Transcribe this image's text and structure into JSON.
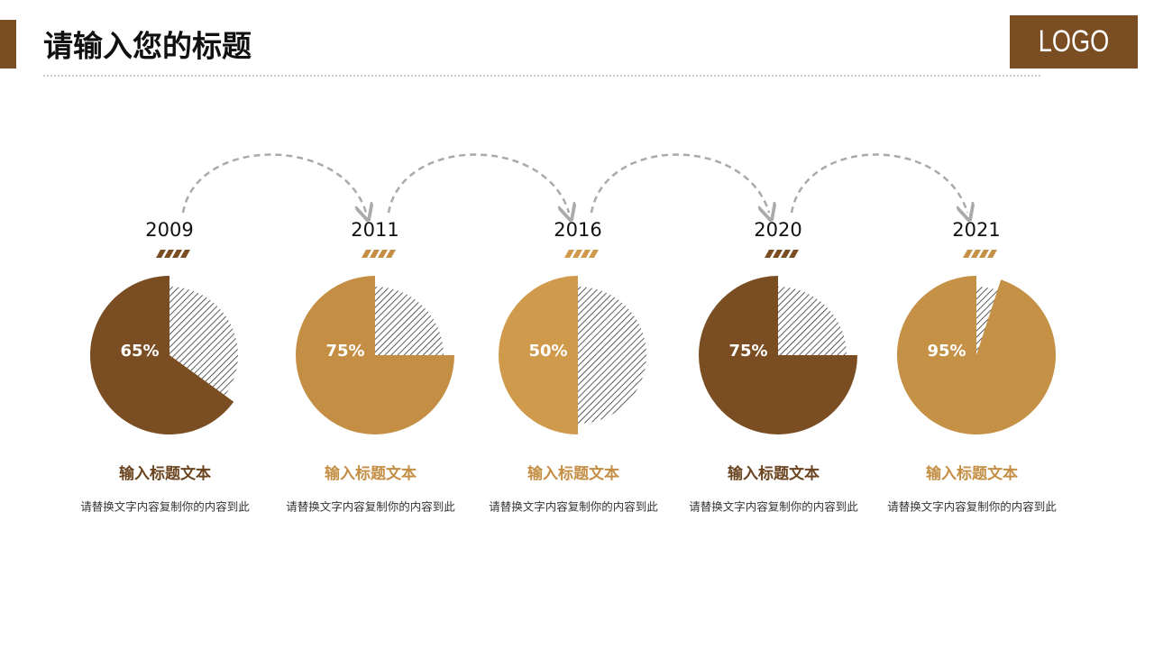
{
  "header": {
    "title": "请输入您的标题",
    "logo": "LOGO"
  },
  "chart_data": [
    {
      "type": "pie",
      "title": "2009",
      "values": [
        65
      ],
      "value_labels": [
        "65%"
      ],
      "color": "#7a4e22",
      "heading": "输入标题文本",
      "heading_color": "#6b4520",
      "text": "请替换文字内容复制你的内容到此"
    },
    {
      "type": "pie",
      "title": "2011",
      "values": [
        75
      ],
      "value_labels": [
        "75%"
      ],
      "color": "#c48f45",
      "heading": "输入标题文本",
      "heading_color": "#c48f45",
      "text": "请替换文字内容复制你的内容到此"
    },
    {
      "type": "pie",
      "title": "2016",
      "values": [
        50
      ],
      "value_labels": [
        "50%"
      ],
      "color": "#d09a4c",
      "heading": "输入标题文本",
      "heading_color": "#c48f45",
      "text": "请替换文字内容复制你的内容到此"
    },
    {
      "type": "pie",
      "title": "2020",
      "values": [
        75
      ],
      "value_labels": [
        "75%"
      ],
      "color": "#7a4e22",
      "heading": "输入标题文本",
      "heading_color": "#6b4520",
      "text": "请替换文字内容复制你的内容到此"
    },
    {
      "type": "pie",
      "title": "2021",
      "values": [
        95
      ],
      "value_labels": [
        "95%"
      ],
      "color": "#c49146",
      "heading": "输入标题文本",
      "heading_color": "#c48f45",
      "text": "请替换文字内容复制你的内容到此"
    }
  ]
}
